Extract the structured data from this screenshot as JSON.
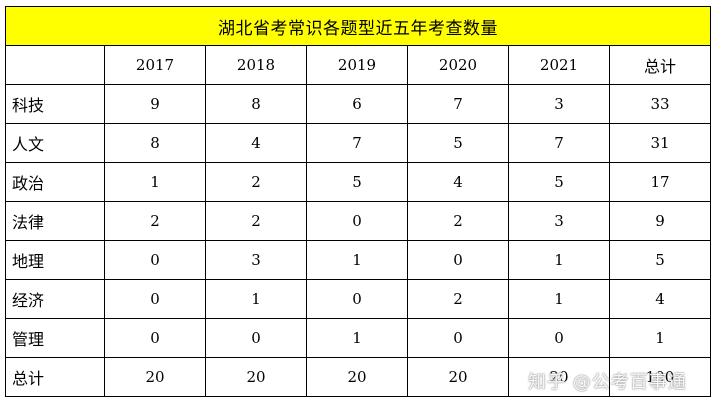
{
  "title": "湖北省考常识各题型近五年考查数量",
  "header": [
    "",
    "2017",
    "2018",
    "2019",
    "2020",
    "2021",
    "总计"
  ],
  "rows": [
    {
      "label": "科技",
      "values": [
        "9",
        "8",
        "6",
        "7",
        "3",
        "33"
      ]
    },
    {
      "label": "人文",
      "values": [
        "8",
        "4",
        "7",
        "5",
        "7",
        "31"
      ]
    },
    {
      "label": "政治",
      "values": [
        "1",
        "2",
        "5",
        "4",
        "5",
        "17"
      ]
    },
    {
      "label": "法律",
      "values": [
        "2",
        "2",
        "0",
        "2",
        "3",
        "9"
      ]
    },
    {
      "label": "地理",
      "values": [
        "0",
        "3",
        "1",
        "0",
        "1",
        "5"
      ]
    },
    {
      "label": "经济",
      "values": [
        "0",
        "1",
        "0",
        "2",
        "1",
        "4"
      ]
    },
    {
      "label": "管理",
      "values": [
        "0",
        "0",
        "1",
        "0",
        "0",
        "1"
      ]
    },
    {
      "label": "总计",
      "values": [
        "20",
        "20",
        "20",
        "20",
        "20",
        "100"
      ]
    }
  ],
  "watermark": "知乎 @公考百事通",
  "colors": {
    "title_background": "#ffff00",
    "border": "#000000"
  }
}
